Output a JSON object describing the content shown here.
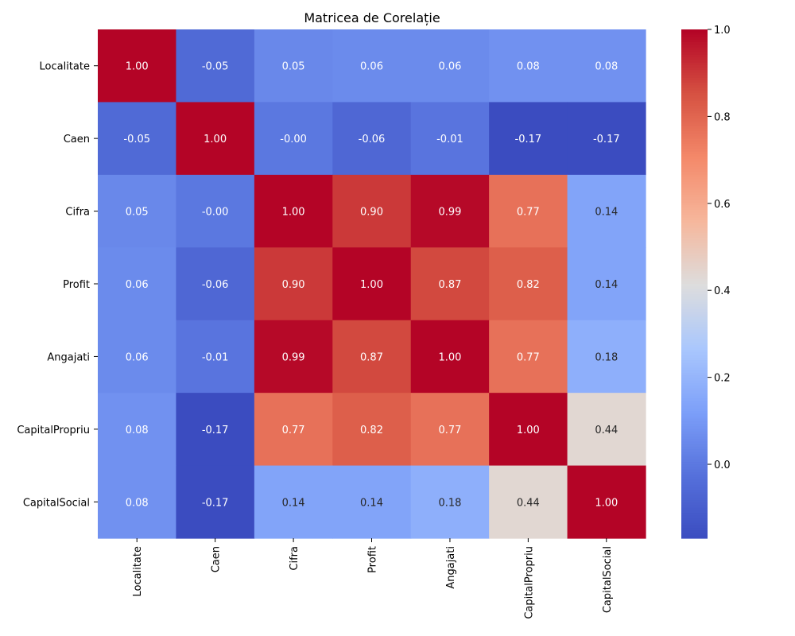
{
  "chart_data": {
    "type": "heatmap",
    "title": "Matricea de Corelație",
    "x_labels": [
      "Localitate",
      "Caen",
      "Cifra",
      "Profit",
      "Angajati",
      "CapitalPropriu",
      "CapitalSocial"
    ],
    "y_labels": [
      "Localitate",
      "Caen",
      "Cifra",
      "Profit",
      "Angajati",
      "CapitalPropriu",
      "CapitalSocial"
    ],
    "values": [
      [
        1.0,
        -0.05,
        0.05,
        0.06,
        0.06,
        0.08,
        0.08
      ],
      [
        -0.05,
        1.0,
        -0.0,
        -0.06,
        -0.01,
        -0.17,
        -0.17
      ],
      [
        0.05,
        -0.0,
        1.0,
        0.9,
        0.99,
        0.77,
        0.14
      ],
      [
        0.06,
        -0.06,
        0.9,
        1.0,
        0.87,
        0.82,
        0.14
      ],
      [
        0.06,
        -0.01,
        0.99,
        0.87,
        1.0,
        0.77,
        0.18
      ],
      [
        0.08,
        -0.17,
        0.77,
        0.82,
        0.77,
        1.0,
        0.44
      ],
      [
        0.08,
        -0.17,
        0.14,
        0.14,
        0.18,
        0.44,
        1.0
      ]
    ],
    "value_labels": [
      [
        "1.00",
        "-0.05",
        "0.05",
        "0.06",
        "0.06",
        "0.08",
        "0.08"
      ],
      [
        "-0.05",
        "1.00",
        "-0.00",
        "-0.06",
        "-0.01",
        "-0.17",
        "-0.17"
      ],
      [
        "0.05",
        "-0.00",
        "1.00",
        "0.90",
        "0.99",
        "0.77",
        "0.14"
      ],
      [
        "0.06",
        "-0.06",
        "0.90",
        "1.00",
        "0.87",
        "0.82",
        "0.14"
      ],
      [
        "0.06",
        "-0.01",
        "0.99",
        "0.87",
        "1.00",
        "0.77",
        "0.18"
      ],
      [
        "0.08",
        "-0.17",
        "0.77",
        "0.82",
        "0.77",
        "1.00",
        "0.44"
      ],
      [
        "0.08",
        "-0.17",
        "0.14",
        "0.14",
        "0.18",
        "0.44",
        "1.00"
      ]
    ],
    "colormap": "coolwarm",
    "color_range": [
      -0.17,
      1.0
    ],
    "colorbar_ticks": [
      "0.0",
      "0.2",
      "0.4",
      "0.6",
      "0.8",
      "1.0"
    ],
    "colorbar_tick_values": [
      0.0,
      0.2,
      0.4,
      0.6,
      0.8,
      1.0
    ],
    "x_tick_rotation": "vertical",
    "grid": false,
    "colorbar_position": "right"
  }
}
